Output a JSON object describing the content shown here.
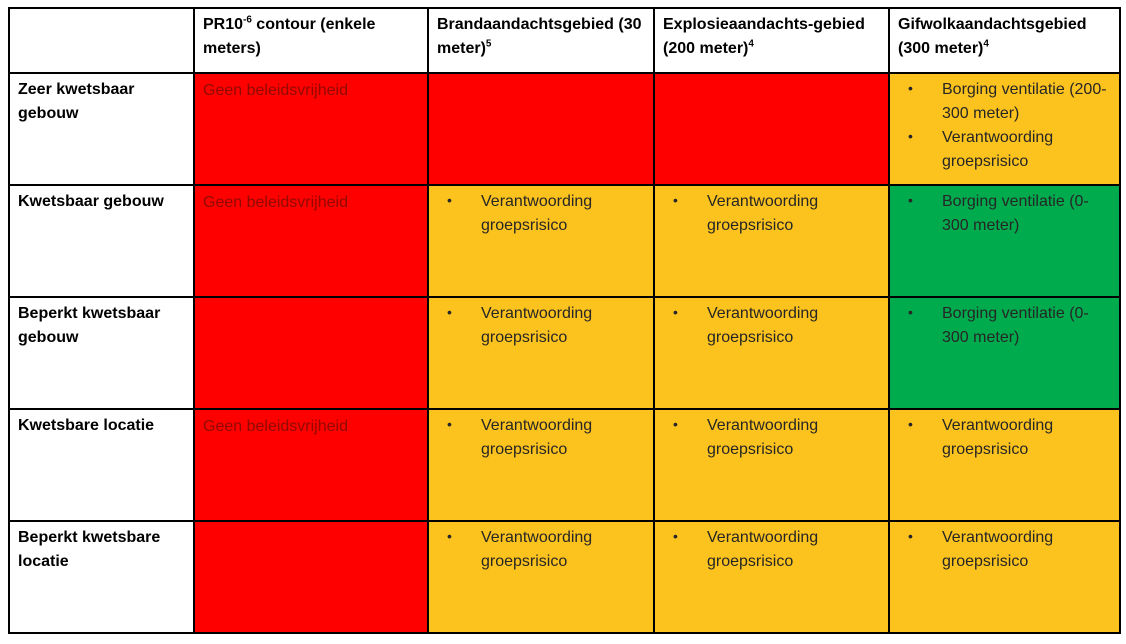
{
  "colors": {
    "red": "#FF0000",
    "orange": "#FCC21D",
    "green": "#00AB4E",
    "red_cell_text": "#8F0A00",
    "cell_text": "#262626",
    "border": "#000000"
  },
  "table": {
    "bullet_char": "•",
    "header": {
      "corner_label": "",
      "cols": [
        {
          "pre": "PR10",
          "sup": "-6",
          "post": " contour (enkele meters)"
        },
        {
          "pre": "Brandaandachtsgebied (30 meter)",
          "sup": "5",
          "post": ""
        },
        {
          "pre": "Explosieaandachts-gebied (200 meter)",
          "sup": "4",
          "post": ""
        },
        {
          "pre": "Gifwolkaandachtsgebied (300 meter)",
          "sup": "4",
          "post": ""
        }
      ]
    },
    "rows": [
      {
        "label": "Zeer kwetsbaar gebouw",
        "cells": [
          {
            "color": "red",
            "text": "Geen beleidsvrijheid"
          },
          {
            "color": "red"
          },
          {
            "color": "red"
          },
          {
            "color": "orange",
            "bullets": [
              "Borging ventilatie (200-300 meter)",
              "Verantwoording groepsrisico"
            ]
          }
        ]
      },
      {
        "label": "Kwetsbaar gebouw",
        "cells": [
          {
            "color": "red",
            "text": "Geen beleidsvrijheid"
          },
          {
            "color": "orange",
            "bullets": [
              "Verantwoording groepsrisico"
            ]
          },
          {
            "color": "orange",
            "bullets": [
              "Verantwoording groepsrisico"
            ]
          },
          {
            "color": "green",
            "bullets": [
              "Borging ventilatie (0-300 meter)"
            ]
          }
        ]
      },
      {
        "label": "Beperkt kwetsbaar gebouw",
        "cells": [
          {
            "color": "red"
          },
          {
            "color": "orange",
            "bullets": [
              "Verantwoording groepsrisico"
            ]
          },
          {
            "color": "orange",
            "bullets": [
              "Verantwoording groepsrisico"
            ]
          },
          {
            "color": "green",
            "bullets": [
              "Borging ventilatie (0-300 meter)"
            ]
          }
        ]
      },
      {
        "label": "Kwetsbare locatie",
        "cells": [
          {
            "color": "red",
            "text": "Geen beleidsvrijheid"
          },
          {
            "color": "orange",
            "bullets": [
              "Verantwoording groepsrisico"
            ]
          },
          {
            "color": "orange",
            "bullets": [
              "Verantwoording groepsrisico"
            ]
          },
          {
            "color": "orange",
            "bullets": [
              "Verantwoording groepsrisico"
            ]
          }
        ]
      },
      {
        "label": "Beperkt kwetsbare locatie",
        "cells": [
          {
            "color": "red"
          },
          {
            "color": "orange",
            "bullets": [
              "Verantwoording groepsrisico"
            ]
          },
          {
            "color": "orange",
            "bullets": [
              "Verantwoording groepsrisico"
            ]
          },
          {
            "color": "orange",
            "bullets": [
              "Verantwoording groepsrisico"
            ]
          }
        ]
      }
    ]
  }
}
